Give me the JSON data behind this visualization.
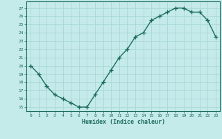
{
  "x": [
    0,
    1,
    2,
    3,
    4,
    5,
    6,
    7,
    8,
    9,
    10,
    11,
    12,
    13,
    14,
    15,
    16,
    17,
    18,
    19,
    20,
    21,
    22,
    23
  ],
  "y": [
    20.0,
    19.0,
    17.5,
    16.5,
    16.0,
    15.5,
    15.0,
    15.0,
    16.5,
    18.0,
    19.5,
    21.0,
    22.0,
    23.5,
    24.0,
    25.5,
    26.0,
    26.5,
    27.0,
    27.0,
    26.5,
    26.5,
    25.5,
    23.5
  ],
  "xlabel": "Humidex (Indice chaleur)",
  "ylim": [
    14.5,
    27.8
  ],
  "xlim": [
    -0.5,
    23.5
  ],
  "yticks": [
    15,
    16,
    17,
    18,
    19,
    20,
    21,
    22,
    23,
    24,
    25,
    26,
    27
  ],
  "xticks": [
    0,
    1,
    2,
    3,
    4,
    5,
    6,
    7,
    8,
    9,
    10,
    11,
    12,
    13,
    14,
    15,
    16,
    17,
    18,
    19,
    20,
    21,
    22,
    23
  ],
  "line_color": "#1a6b5a",
  "bg_color": "#c5eaea",
  "grid_color": "#a8d8d8",
  "marker": "+",
  "marker_size": 4,
  "line_width": 1.0
}
